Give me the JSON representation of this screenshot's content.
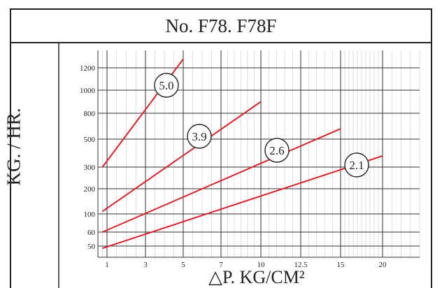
{
  "chart_data": {
    "type": "line",
    "title": "No. F78. F78F",
    "ylabel": "KG. / HR.",
    "xlabel": "△P.  KG/CM²",
    "x_ticks": [
      "1",
      "3",
      "5",
      "7",
      "10",
      "12.5",
      "15",
      "20"
    ],
    "y_ticks": [
      "50",
      "60",
      "100",
      "200",
      "300",
      "500",
      "800",
      "1000",
      "1200"
    ],
    "grid": true,
    "series": [
      {
        "name": "5.0",
        "points": [
          [
            0.5,
            300
          ],
          [
            5,
            1300
          ]
        ]
      },
      {
        "name": "3.9",
        "points": [
          [
            0.5,
            110
          ],
          [
            10,
            900
          ]
        ]
      },
      {
        "name": "2.6",
        "points": [
          [
            0.5,
            60
          ],
          [
            15,
            620
          ]
        ]
      },
      {
        "name": "2.1",
        "points": [
          [
            0.5,
            40
          ],
          [
            20,
            380
          ]
        ]
      }
    ],
    "line_color": "#d8232a"
  }
}
